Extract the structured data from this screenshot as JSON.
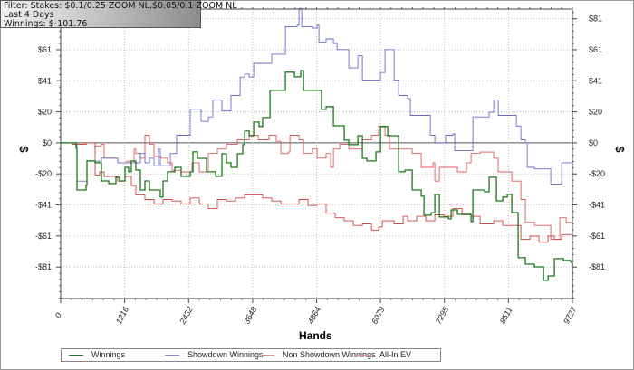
{
  "info_box": {
    "filter": "Filter: Stakes: $0.1/0.25 ZOOM NL,$0.05/0.1 ZOOM NL",
    "period": "Last  4 Days",
    "winnings": "Winnings: $-101.76"
  },
  "chart_data": {
    "type": "line",
    "xlabel": "Hands",
    "ylabel": "$",
    "xlim": [
      0,
      9727
    ],
    "ylim": [
      -101.8,
      87.5
    ],
    "grid": true,
    "legend_position": "bottom",
    "x_ticks": [
      0,
      1216,
      2432,
      3648,
      4864,
      6079,
      7295,
      8511,
      9727
    ],
    "x_tick_labels": [
      "0",
      "1216",
      "2432",
      "3648",
      "4864",
      "6079",
      "7295",
      "8511",
      "9727"
    ],
    "y_ticks": [
      81.2,
      60.9,
      40.6,
      20.3,
      0,
      -20.3,
      -40.6,
      -60.9,
      -81.2
    ],
    "y_tick_labels": [
      "$81",
      "$61",
      "$41",
      "$20",
      "$0",
      "-$20",
      "-$41",
      "-$61",
      "-$81"
    ],
    "series": [
      {
        "name": "Winnings",
        "color": "#1a7a1a",
        "points": [
          [
            0,
            0
          ],
          [
            293,
            -3.6
          ],
          [
            310,
            -30.8
          ],
          [
            482,
            -27.8
          ],
          [
            499,
            -11.8
          ],
          [
            654,
            -13
          ],
          [
            740,
            -13
          ],
          [
            775,
            -24.9
          ],
          [
            913,
            -26.6
          ],
          [
            1050,
            -22.5
          ],
          [
            1119,
            -24.9
          ],
          [
            1223,
            -16
          ],
          [
            1292,
            -18.9
          ],
          [
            1343,
            -11.8
          ],
          [
            1429,
            -17.8
          ],
          [
            1515,
            -30.8
          ],
          [
            1601,
            -24.9
          ],
          [
            1688,
            -30.8
          ],
          [
            1894,
            -35.5
          ],
          [
            1946,
            -24.9
          ],
          [
            2032,
            -18.9
          ],
          [
            2170,
            -16
          ],
          [
            2290,
            -21.9
          ],
          [
            2462,
            -18.9
          ],
          [
            2514,
            -5.9
          ],
          [
            2600,
            -10.1
          ],
          [
            2772,
            -18.9
          ],
          [
            2945,
            -21.9
          ],
          [
            3065,
            -7.1
          ],
          [
            3151,
            -13
          ],
          [
            3237,
            -16
          ],
          [
            3358,
            -7.1
          ],
          [
            3461,
            -1.2
          ],
          [
            3496,
            7.7
          ],
          [
            3582,
            4.7
          ],
          [
            3668,
            13.6
          ],
          [
            3771,
            10.7
          ],
          [
            3840,
            16.6
          ],
          [
            3978,
            34.3
          ],
          [
            4098,
            34.3
          ],
          [
            4271,
            46.2
          ],
          [
            4443,
            43.2
          ],
          [
            4563,
            47.3
          ],
          [
            4615,
            34.3
          ],
          [
            4787,
            34.3
          ],
          [
            4959,
            21.9
          ],
          [
            5045,
            23.7
          ],
          [
            5183,
            11.2
          ],
          [
            5390,
            1.8
          ],
          [
            5476,
            -1.2
          ],
          [
            5648,
            4.7
          ],
          [
            5734,
            -10.1
          ],
          [
            5820,
            -11.8
          ],
          [
            5993,
            -5.9
          ],
          [
            6079,
            10.7
          ],
          [
            6216,
            4.7
          ],
          [
            6423,
            -18.9
          ],
          [
            6544,
            -17.8
          ],
          [
            6681,
            -30.8
          ],
          [
            6854,
            -34.9
          ],
          [
            6905,
            -47.3
          ],
          [
            7043,
            -45.6
          ],
          [
            7112,
            -33.7
          ],
          [
            7198,
            -48.5
          ],
          [
            7370,
            -49.7
          ],
          [
            7422,
            -43.8
          ],
          [
            7542,
            -46.7
          ],
          [
            7800,
            -51.5
          ],
          [
            7835,
            -30.8
          ],
          [
            8059,
            -32
          ],
          [
            8145,
            -22.5
          ],
          [
            8283,
            -37.9
          ],
          [
            8403,
            -35.5
          ],
          [
            8489,
            -33.7
          ],
          [
            8576,
            -45.6
          ],
          [
            8696,
            -75.1
          ],
          [
            8834,
            -79.3
          ],
          [
            9006,
            -81.1
          ],
          [
            9178,
            -89.9
          ],
          [
            9264,
            -87
          ],
          [
            9385,
            -75.7
          ],
          [
            9557,
            -76.9
          ],
          [
            9695,
            -78
          ],
          [
            9727,
            -101.76
          ]
        ]
      },
      {
        "name": "Showdown Winnings",
        "color": "#6a6ac8",
        "points": [
          [
            0,
            0
          ],
          [
            293,
            0
          ],
          [
            310,
            -25
          ],
          [
            482,
            -25
          ],
          [
            499,
            -12
          ],
          [
            740,
            -12
          ],
          [
            775,
            -10
          ],
          [
            1033,
            -10
          ],
          [
            1085,
            -13
          ],
          [
            1429,
            -13
          ],
          [
            1515,
            -7
          ],
          [
            1601,
            -13
          ],
          [
            1688,
            -10
          ],
          [
            1774,
            -15
          ],
          [
            1860,
            -4
          ],
          [
            1894,
            -15
          ],
          [
            2032,
            -15
          ],
          [
            2084,
            -7
          ],
          [
            2204,
            5
          ],
          [
            2376,
            5
          ],
          [
            2462,
            22
          ],
          [
            2635,
            22
          ],
          [
            2669,
            14
          ],
          [
            2807,
            17
          ],
          [
            2893,
            28
          ],
          [
            3065,
            21
          ],
          [
            3237,
            31
          ],
          [
            3358,
            31
          ],
          [
            3410,
            43
          ],
          [
            3496,
            45
          ],
          [
            3582,
            43
          ],
          [
            3668,
            52
          ],
          [
            3874,
            52
          ],
          [
            4012,
            58
          ],
          [
            4185,
            58
          ],
          [
            4271,
            76
          ],
          [
            4495,
            77
          ],
          [
            4529,
            88
          ],
          [
            4581,
            76
          ],
          [
            4701,
            76
          ],
          [
            4787,
            75
          ],
          [
            4873,
            77
          ],
          [
            4908,
            66
          ],
          [
            5011,
            66
          ],
          [
            5045,
            68
          ],
          [
            5183,
            65
          ],
          [
            5252,
            61
          ],
          [
            5390,
            61
          ],
          [
            5476,
            49
          ],
          [
            5562,
            49
          ],
          [
            5648,
            57
          ],
          [
            5734,
            41
          ],
          [
            6079,
            46
          ],
          [
            6165,
            61
          ],
          [
            6251,
            61
          ],
          [
            6337,
            41
          ],
          [
            6423,
            31
          ],
          [
            6595,
            29
          ],
          [
            6647,
            18
          ],
          [
            6940,
            18
          ],
          [
            7026,
            5
          ],
          [
            7112,
            0
          ],
          [
            7318,
            5
          ],
          [
            7456,
            6
          ],
          [
            7491,
            -5
          ],
          [
            7800,
            -5
          ],
          [
            7835,
            17
          ],
          [
            8093,
            17
          ],
          [
            8145,
            20
          ],
          [
            8231,
            28
          ],
          [
            8317,
            18
          ],
          [
            8541,
            18
          ],
          [
            8662,
            11
          ],
          [
            8748,
            2
          ],
          [
            8834,
            0
          ],
          [
            8868,
            -16
          ],
          [
            9006,
            -17
          ],
          [
            9264,
            -17
          ],
          [
            9316,
            -27
          ],
          [
            9471,
            -27
          ],
          [
            9523,
            -13
          ],
          [
            9727,
            -13
          ]
        ]
      },
      {
        "name": "Non Showdown Winnings",
        "color": "#d24040",
        "points": [
          [
            0,
            0
          ],
          [
            224,
            -1
          ],
          [
            482,
            0
          ],
          [
            654,
            -21
          ],
          [
            740,
            -19
          ],
          [
            826,
            -22
          ],
          [
            999,
            -22
          ],
          [
            1085,
            -25
          ],
          [
            1223,
            -22
          ],
          [
            1343,
            -28
          ],
          [
            1429,
            -34
          ],
          [
            1601,
            -37
          ],
          [
            1774,
            -40
          ],
          [
            1946,
            -37
          ],
          [
            2118,
            -38
          ],
          [
            2290,
            -40
          ],
          [
            2462,
            -36
          ],
          [
            2635,
            -40
          ],
          [
            2807,
            -43
          ],
          [
            2979,
            -37
          ],
          [
            3151,
            -38
          ],
          [
            3323,
            -36
          ],
          [
            3496,
            -34
          ],
          [
            3668,
            -34
          ],
          [
            3840,
            -36
          ],
          [
            4012,
            -38
          ],
          [
            4185,
            -40
          ],
          [
            4357,
            -40
          ],
          [
            4529,
            -37
          ],
          [
            4701,
            -41
          ],
          [
            4873,
            -40
          ],
          [
            5045,
            -46
          ],
          [
            5218,
            -49
          ],
          [
            5390,
            -51
          ],
          [
            5562,
            -54
          ],
          [
            5734,
            -53
          ],
          [
            5906,
            -57
          ],
          [
            6044,
            -55
          ],
          [
            6113,
            -51
          ],
          [
            6337,
            -53
          ],
          [
            6509,
            -48
          ],
          [
            6595,
            -51
          ],
          [
            6768,
            -48
          ],
          [
            6940,
            -51
          ],
          [
            7112,
            -47
          ],
          [
            7284,
            -48
          ],
          [
            7456,
            -43
          ],
          [
            7628,
            -47
          ],
          [
            7800,
            -48
          ],
          [
            7972,
            -53
          ],
          [
            8231,
            -51
          ],
          [
            8403,
            -54
          ],
          [
            8576,
            -54
          ],
          [
            8748,
            -63
          ],
          [
            8920,
            -61
          ],
          [
            9092,
            -65
          ],
          [
            9264,
            -61
          ],
          [
            9385,
            -63
          ],
          [
            9523,
            -60
          ],
          [
            9727,
            -62
          ]
        ]
      },
      {
        "name": "All-In EV",
        "color": "#e05a5a",
        "points": [
          [
            0,
            0
          ],
          [
            224,
            -1
          ],
          [
            482,
            0
          ],
          [
            654,
            -2
          ],
          [
            775,
            -1
          ],
          [
            826,
            -10
          ],
          [
            999,
            -10
          ],
          [
            1085,
            -13
          ],
          [
            1257,
            -12
          ],
          [
            1343,
            -13
          ],
          [
            1395,
            -4
          ],
          [
            1429,
            -7
          ],
          [
            1515,
            -10
          ],
          [
            1601,
            5
          ],
          [
            1688,
            -1
          ],
          [
            1774,
            -9
          ],
          [
            1911,
            -10
          ],
          [
            2032,
            -13
          ],
          [
            2118,
            -18
          ],
          [
            2290,
            -19
          ],
          [
            2376,
            -19
          ],
          [
            2497,
            -13
          ],
          [
            2635,
            -19
          ],
          [
            2772,
            -19
          ],
          [
            2807,
            -7
          ],
          [
            2979,
            -4
          ],
          [
            3065,
            -4
          ],
          [
            3151,
            -1
          ],
          [
            3237,
            -1
          ],
          [
            3358,
            2
          ],
          [
            3496,
            2
          ],
          [
            3582,
            5
          ],
          [
            3754,
            2
          ],
          [
            3960,
            5
          ],
          [
            4098,
            1
          ],
          [
            4185,
            -7
          ],
          [
            4323,
            -6
          ],
          [
            4357,
            5
          ],
          [
            4529,
            2
          ],
          [
            4615,
            -7
          ],
          [
            4787,
            -4
          ],
          [
            4873,
            -10
          ],
          [
            5045,
            -7
          ],
          [
            5132,
            -16
          ],
          [
            5183,
            -4
          ],
          [
            5304,
            -1
          ],
          [
            5476,
            -4
          ],
          [
            5734,
            2
          ],
          [
            5906,
            5
          ],
          [
            6044,
            11
          ],
          [
            6165,
            5
          ],
          [
            6251,
            -4
          ],
          [
            6509,
            -4
          ],
          [
            6681,
            -7
          ],
          [
            6854,
            -16
          ],
          [
            7078,
            -13
          ],
          [
            7112,
            -25
          ],
          [
            7198,
            -16
          ],
          [
            7370,
            -16
          ],
          [
            7542,
            -19
          ],
          [
            7714,
            -13
          ],
          [
            7800,
            -7
          ],
          [
            7972,
            -6
          ],
          [
            8231,
            -10
          ],
          [
            8317,
            -19
          ],
          [
            8489,
            -19
          ],
          [
            8576,
            -25
          ],
          [
            8748,
            -37
          ],
          [
            8834,
            -52
          ],
          [
            9006,
            -54
          ],
          [
            9264,
            -54
          ],
          [
            9316,
            -63
          ],
          [
            9488,
            -49
          ],
          [
            9609,
            -52
          ],
          [
            9727,
            -54
          ]
        ]
      }
    ]
  }
}
